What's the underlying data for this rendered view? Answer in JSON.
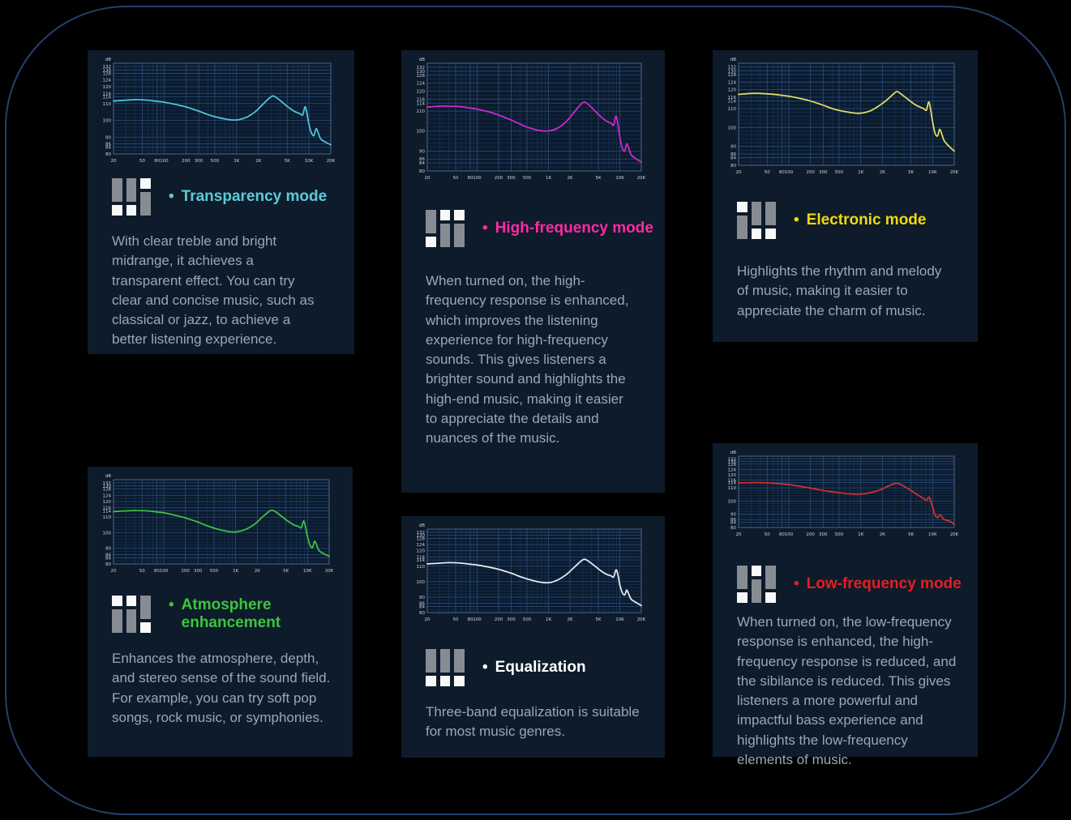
{
  "page": {
    "background": "#000000",
    "frame_border_color": "#23406e",
    "card_background": "#0d1b2b",
    "icon_colors": {
      "bar": "#878c93",
      "square": "#f8f8f8"
    }
  },
  "chart_axis": {
    "x_scale": "log",
    "xlim": [
      20,
      20000
    ],
    "ylim": [
      80,
      134
    ],
    "grid": true,
    "x_tick_labels": [
      "20",
      "50",
      "80",
      "100",
      "200",
      "300",
      "500",
      "1K",
      "2K",
      "5K",
      "10K",
      "20K"
    ],
    "x_tick_values": [
      20,
      50,
      80,
      100,
      200,
      300,
      500,
      1000,
      2000,
      5000,
      10000,
      20000
    ],
    "y_tick_labels": [
      "dB",
      "132",
      "130",
      "128",
      "124",
      "120",
      "116",
      "114",
      "110",
      "100",
      "90",
      "86",
      "84",
      "80"
    ],
    "y_tick_values": [
      132,
      130,
      128,
      124,
      120,
      116,
      114,
      110,
      100,
      90,
      86,
      84,
      80
    ]
  },
  "cards": [
    {
      "title": "Transparency mode",
      "bullet": "•",
      "title_color": "#5ec9d8",
      "curve_color": "#4fc4d6",
      "icon_pattern": [
        "bar-square",
        "bar-square",
        "square-bar"
      ],
      "description": "With clear treble and bright midrange, it achieves a transparent effect. You can try clear and concise music, such as classical or jazz, to achieve a better listening experience.",
      "chart_data": {
        "type": "line",
        "series_name": "frequency response (dB vs Hz)",
        "points": [
          [
            20,
            111.5
          ],
          [
            30,
            112
          ],
          [
            40,
            112.3
          ],
          [
            60,
            112
          ],
          [
            80,
            111.3
          ],
          [
            100,
            110.8
          ],
          [
            150,
            109.3
          ],
          [
            200,
            108
          ],
          [
            300,
            105.5
          ],
          [
            400,
            103.5
          ],
          [
            500,
            102.2
          ],
          [
            700,
            100.8
          ],
          [
            900,
            100.2
          ],
          [
            1100,
            100.5
          ],
          [
            1400,
            102
          ],
          [
            1800,
            105
          ],
          [
            2300,
            109.5
          ],
          [
            2800,
            113
          ],
          [
            3200,
            114.5
          ],
          [
            3700,
            113
          ],
          [
            4500,
            110
          ],
          [
            5500,
            107
          ],
          [
            6500,
            105
          ],
          [
            7500,
            104
          ],
          [
            8200,
            103.2
          ],
          [
            8800,
            108
          ],
          [
            9300,
            105
          ],
          [
            10000,
            97.5
          ],
          [
            10800,
            92.5
          ],
          [
            11700,
            91
          ],
          [
            12500,
            95
          ],
          [
            13300,
            93
          ],
          [
            14500,
            89
          ],
          [
            17000,
            87
          ],
          [
            20000,
            85.5
          ]
        ]
      }
    },
    {
      "title": "High-frequency mode",
      "bullet": "•",
      "title_color": "#ff2aa4",
      "curve_color": "#c92bc9",
      "icon_pattern": [
        "bar-square",
        "square-bar",
        "square-bar"
      ],
      "description": "When turned on, the high-frequency response is enhanced, which improves the listening experience for high-frequency sounds. This gives listeners a brighter sound and highlights the high-end music, making it easier to appreciate the details and nuances of the music.",
      "chart_data": {
        "type": "line",
        "series_name": "frequency response (dB vs Hz)",
        "points": [
          [
            20,
            112
          ],
          [
            30,
            112.5
          ],
          [
            40,
            112.5
          ],
          [
            60,
            112.2
          ],
          [
            80,
            111.5
          ],
          [
            100,
            111
          ],
          [
            150,
            109.5
          ],
          [
            200,
            108
          ],
          [
            300,
            105.5
          ],
          [
            400,
            103.5
          ],
          [
            500,
            102
          ],
          [
            700,
            100.5
          ],
          [
            900,
            100
          ],
          [
            1100,
            100.3
          ],
          [
            1400,
            101.8
          ],
          [
            1800,
            105
          ],
          [
            2300,
            109.5
          ],
          [
            2800,
            113.2
          ],
          [
            3200,
            114.5
          ],
          [
            3700,
            113
          ],
          [
            4500,
            110
          ],
          [
            5500,
            107
          ],
          [
            6500,
            105
          ],
          [
            7500,
            104
          ],
          [
            8200,
            103
          ],
          [
            8800,
            107.5
          ],
          [
            9300,
            104.5
          ],
          [
            10000,
            97
          ],
          [
            10800,
            91.5
          ],
          [
            11700,
            90
          ],
          [
            12500,
            93.5
          ],
          [
            13300,
            91.5
          ],
          [
            14500,
            88
          ],
          [
            17000,
            86
          ],
          [
            20000,
            84.5
          ]
        ]
      }
    },
    {
      "title": "Electronic mode",
      "bullet": "•",
      "title_color": "#f2d90a",
      "curve_color": "#ded964",
      "icon_pattern": [
        "square-bar",
        "bar-square",
        "bar-square"
      ],
      "description": "Highlights the rhythm and melody of music, making it easier to appreciate the charm of music.",
      "chart_data": {
        "type": "line",
        "series_name": "frequency response (dB vs Hz)",
        "points": [
          [
            20,
            117.5
          ],
          [
            30,
            118
          ],
          [
            40,
            118
          ],
          [
            60,
            117.6
          ],
          [
            80,
            117
          ],
          [
            100,
            116.5
          ],
          [
            150,
            115.2
          ],
          [
            200,
            114
          ],
          [
            300,
            111.8
          ],
          [
            400,
            110
          ],
          [
            500,
            109
          ],
          [
            700,
            108
          ],
          [
            900,
            107.5
          ],
          [
            1100,
            107.8
          ],
          [
            1400,
            109
          ],
          [
            1800,
            111.5
          ],
          [
            2300,
            114.5
          ],
          [
            2800,
            117.5
          ],
          [
            3200,
            119
          ],
          [
            3700,
            117.5
          ],
          [
            4500,
            115
          ],
          [
            5500,
            112.5
          ],
          [
            6500,
            111
          ],
          [
            7500,
            110
          ],
          [
            8200,
            109.2
          ],
          [
            8800,
            113.5
          ],
          [
            9300,
            110.5
          ],
          [
            10000,
            103
          ],
          [
            10800,
            97
          ],
          [
            11700,
            95.5
          ],
          [
            12500,
            99
          ],
          [
            13300,
            97
          ],
          [
            14500,
            93
          ],
          [
            17000,
            90
          ],
          [
            20000,
            87.5
          ]
        ]
      }
    },
    {
      "title": "Atmosphere enhancement",
      "bullet": "•",
      "title_color": "#3ec43e",
      "curve_color": "#41bf41",
      "icon_pattern": [
        "square-bar",
        "square-bar",
        "bar-square"
      ],
      "description": "Enhances the atmosphere, depth, and stereo sense of the sound field. For example, you can try soft pop songs, rock music, or symphonies.",
      "chart_data": {
        "type": "line",
        "series_name": "frequency response (dB vs Hz)",
        "points": [
          [
            20,
            113.5
          ],
          [
            30,
            114
          ],
          [
            40,
            114.2
          ],
          [
            60,
            114
          ],
          [
            80,
            113.3
          ],
          [
            100,
            112.8
          ],
          [
            150,
            111
          ],
          [
            200,
            109.5
          ],
          [
            300,
            106.8
          ],
          [
            400,
            104.5
          ],
          [
            500,
            103
          ],
          [
            700,
            101.3
          ],
          [
            900,
            100.5
          ],
          [
            1100,
            100.8
          ],
          [
            1400,
            102.3
          ],
          [
            1800,
            105.2
          ],
          [
            2300,
            109.6
          ],
          [
            2800,
            113
          ],
          [
            3200,
            114.5
          ],
          [
            3700,
            113
          ],
          [
            4500,
            110
          ],
          [
            5500,
            107
          ],
          [
            6500,
            105
          ],
          [
            7500,
            104
          ],
          [
            8200,
            103.2
          ],
          [
            8800,
            107.5
          ],
          [
            9300,
            104.5
          ],
          [
            10000,
            97.5
          ],
          [
            10800,
            92
          ],
          [
            11700,
            90.5
          ],
          [
            12500,
            94.5
          ],
          [
            13300,
            92.5
          ],
          [
            14500,
            88.5
          ],
          [
            17000,
            86.5
          ],
          [
            20000,
            85
          ]
        ]
      }
    },
    {
      "title": "Equalization",
      "bullet": "•",
      "title_color": "#ffffff",
      "curve_color": "#e6e9ee",
      "icon_pattern": [
        "bar-square",
        "bar-square",
        "bar-square"
      ],
      "description": "Three-band equalization is suitable for most music genres.",
      "chart_data": {
        "type": "line",
        "series_name": "frequency response (dB vs Hz)",
        "points": [
          [
            20,
            111.5
          ],
          [
            30,
            112
          ],
          [
            40,
            112.3
          ],
          [
            60,
            112
          ],
          [
            80,
            111.3
          ],
          [
            100,
            110.8
          ],
          [
            150,
            109.3
          ],
          [
            200,
            108
          ],
          [
            300,
            105.5
          ],
          [
            400,
            103.3
          ],
          [
            500,
            101.8
          ],
          [
            700,
            100
          ],
          [
            900,
            99.3
          ],
          [
            1100,
            99.6
          ],
          [
            1400,
            101.5
          ],
          [
            1800,
            104.8
          ],
          [
            2300,
            109.3
          ],
          [
            2800,
            113
          ],
          [
            3200,
            114.5
          ],
          [
            3700,
            113
          ],
          [
            4500,
            110
          ],
          [
            5500,
            106.8
          ],
          [
            6500,
            104.8
          ],
          [
            7500,
            103.8
          ],
          [
            8200,
            103
          ],
          [
            8800,
            107.5
          ],
          [
            9300,
            105.5
          ],
          [
            10000,
            98
          ],
          [
            10800,
            93
          ],
          [
            11700,
            91.5
          ],
          [
            12500,
            94.5
          ],
          [
            13300,
            92
          ],
          [
            14500,
            88.5
          ],
          [
            17000,
            86.5
          ],
          [
            20000,
            84.5
          ]
        ]
      }
    },
    {
      "title": "Low-frequency mode",
      "bullet": "•",
      "title_color": "#e51f1f",
      "curve_color": "#d42e2e",
      "icon_pattern": [
        "bar-square",
        "square-bar",
        "bar-square"
      ],
      "description": "When turned on, the low-frequency response is enhanced, the high-frequency response is reduced, and the sibilance is reduced. This gives listeners a more powerful and impactful bass experience and highlights the low-frequency elements of music.",
      "chart_data": {
        "type": "line",
        "series_name": "frequency response (dB vs Hz)",
        "points": [
          [
            20,
            113.8
          ],
          [
            30,
            114
          ],
          [
            40,
            114
          ],
          [
            60,
            113.6
          ],
          [
            80,
            113
          ],
          [
            100,
            112.5
          ],
          [
            150,
            111
          ],
          [
            200,
            109.8
          ],
          [
            300,
            108
          ],
          [
            400,
            107
          ],
          [
            500,
            106.3
          ],
          [
            700,
            105.5
          ],
          [
            900,
            105.2
          ],
          [
            1100,
            105.5
          ],
          [
            1400,
            106.5
          ],
          [
            1800,
            108.2
          ],
          [
            2300,
            110.8
          ],
          [
            2800,
            112.8
          ],
          [
            3200,
            113.5
          ],
          [
            3700,
            112.3
          ],
          [
            4500,
            109.5
          ],
          [
            5500,
            106.5
          ],
          [
            6500,
            104
          ],
          [
            7500,
            102
          ],
          [
            8200,
            100.5
          ],
          [
            8800,
            103
          ],
          [
            9300,
            101
          ],
          [
            10000,
            95.5
          ],
          [
            10800,
            89.5
          ],
          [
            11700,
            87.5
          ],
          [
            12500,
            89.5
          ],
          [
            13300,
            88.5
          ],
          [
            14500,
            86
          ],
          [
            17000,
            85
          ],
          [
            20000,
            82.5
          ]
        ]
      }
    }
  ]
}
